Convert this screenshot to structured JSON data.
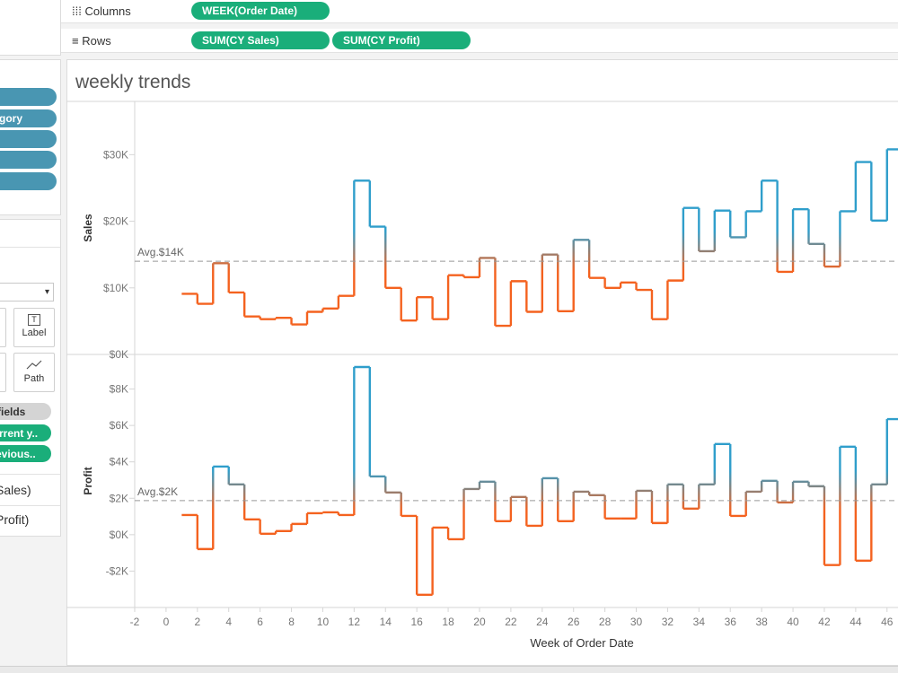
{
  "shelves": {
    "columns": {
      "label": "Columns",
      "pills": [
        "WEEK(Order Date)"
      ]
    },
    "rows": {
      "label": "Rows",
      "pills": [
        "SUM(CY Sales)",
        "SUM(CY Profit)"
      ]
    }
  },
  "sidebar": {
    "filter_pill": "gory",
    "marks_buttons": [
      "Label",
      "Path"
    ],
    "measure_pills": [
      "fields",
      "rrent y..",
      "evious.."
    ],
    "measure_values": [
      "Sales)",
      "Profit)"
    ]
  },
  "title": "weekly trends",
  "chart_data": [
    {
      "type": "line",
      "step": "post",
      "ylabel": "Sales",
      "x": [
        1,
        2,
        3,
        4,
        5,
        6,
        7,
        8,
        9,
        10,
        11,
        12,
        13,
        14,
        15,
        16,
        17,
        18,
        19,
        20,
        21,
        22,
        23,
        24,
        25,
        26,
        27,
        28,
        29,
        30,
        31,
        32,
        33,
        34,
        35,
        36,
        37,
        38,
        39,
        40,
        41,
        42,
        43,
        44,
        45,
        46
      ],
      "values": [
        9100,
        7600,
        13700,
        9300,
        5700,
        5300,
        5500,
        4500,
        6400,
        6900,
        8800,
        26100,
        19200,
        10000,
        5100,
        8600,
        5300,
        11900,
        11600,
        14500,
        4300,
        11000,
        6400,
        15000,
        6500,
        17200,
        11500,
        10000,
        10800,
        9700,
        5300,
        11100,
        22000,
        15500,
        21600,
        17600,
        21500,
        26100,
        12400,
        21800,
        16600,
        13200,
        21500,
        28900,
        20100,
        30800
      ],
      "xlim": [
        -2,
        46.7
      ],
      "ylim": [
        0,
        38000
      ],
      "yticks": [
        {
          "value": 0,
          "label": "$0K"
        },
        {
          "value": 10000,
          "label": "$10K"
        },
        {
          "value": 20000,
          "label": "$20K"
        },
        {
          "value": 30000,
          "label": "$30K"
        }
      ],
      "reference_line": {
        "value": 14000,
        "label": "Avg.$14K"
      },
      "color_above": "#2f9ecb",
      "color_below": "#f4621f"
    },
    {
      "type": "line",
      "step": "post",
      "ylabel": "Profit",
      "xlabel": "Week of Order Date",
      "x": [
        1,
        2,
        3,
        4,
        5,
        6,
        7,
        8,
        9,
        10,
        11,
        12,
        13,
        14,
        15,
        16,
        17,
        18,
        19,
        20,
        21,
        22,
        23,
        24,
        25,
        26,
        27,
        28,
        29,
        30,
        31,
        32,
        33,
        34,
        35,
        36,
        37,
        38,
        39,
        40,
        41,
        42,
        43,
        44,
        45,
        46
      ],
      "values": [
        1080,
        -790,
        3740,
        2760,
        840,
        50,
        200,
        590,
        1180,
        1230,
        1080,
        9210,
        3200,
        2320,
        1030,
        -3300,
        390,
        -250,
        2510,
        2910,
        740,
        2070,
        490,
        3100,
        740,
        2360,
        2170,
        890,
        890,
        2410,
        640,
        2760,
        1430,
        2760,
        4980,
        1030,
        2360,
        2960,
        1770,
        2910,
        2660,
        -1670,
        4830,
        -1430,
        2760,
        6350
      ],
      "xlim": [
        -2,
        46.7
      ],
      "xticks": [
        -2,
        0,
        2,
        4,
        6,
        8,
        10,
        12,
        14,
        16,
        18,
        20,
        22,
        24,
        26,
        28,
        30,
        32,
        34,
        36,
        38,
        40,
        42,
        44,
        46
      ],
      "ylim": [
        -4000,
        9900
      ],
      "yticks": [
        {
          "value": -2000,
          "label": "-$2K"
        },
        {
          "value": 0,
          "label": "$0K"
        },
        {
          "value": 2000,
          "label": "$2K"
        },
        {
          "value": 4000,
          "label": "$4K"
        },
        {
          "value": 6000,
          "label": "$6K"
        },
        {
          "value": 8000,
          "label": "$8K"
        }
      ],
      "reference_line": {
        "value": 1870,
        "label": "Avg.$2K"
      },
      "color_above": "#2f9ecb",
      "color_below": "#f4621f"
    }
  ]
}
